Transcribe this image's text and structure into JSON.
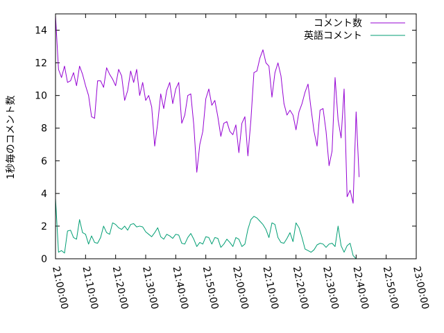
{
  "chart_data": {
    "type": "line",
    "title": "",
    "xlabel": "",
    "ylabel": "1秒毎のコメント数",
    "xlim": [
      "21:00:00",
      "22:58:00"
    ],
    "ylim": [
      0,
      15
    ],
    "grid": false,
    "legend_position": "top-right",
    "x_tick_labels": [
      "21:00:00",
      "21:10:00",
      "21:20:00",
      "21:30:00",
      "21:40:00",
      "21:50:00",
      "22:00:00",
      "22:10:00",
      "22:20:00",
      "22:30:00",
      "22:40:00",
      "22:50:00",
      "23:00:00"
    ],
    "y_tick_labels": [
      "0",
      "2",
      "4",
      "6",
      "8",
      "10",
      "12",
      "14"
    ],
    "series": [
      {
        "name": "コメント数",
        "color": "#9400d3",
        "points": [
          [
            "21:00:00",
            14.9
          ],
          [
            "21:01:00",
            11.6
          ],
          [
            "21:02:00",
            11.1
          ],
          [
            "21:03:00",
            11.8
          ],
          [
            "21:04:00",
            10.8
          ],
          [
            "21:05:00",
            10.9
          ],
          [
            "21:06:00",
            11.4
          ],
          [
            "21:07:00",
            10.6
          ],
          [
            "21:08:00",
            11.8
          ],
          [
            "21:09:00",
            11.3
          ],
          [
            "21:10:00",
            10.6
          ],
          [
            "21:11:00",
            10.0
          ],
          [
            "21:12:00",
            8.7
          ],
          [
            "21:13:00",
            8.6
          ],
          [
            "21:14:00",
            10.9
          ],
          [
            "21:15:00",
            10.9
          ],
          [
            "21:16:00",
            10.5
          ],
          [
            "21:17:00",
            11.7
          ],
          [
            "21:18:00",
            11.3
          ],
          [
            "21:19:00",
            11.0
          ],
          [
            "21:20:00",
            10.6
          ],
          [
            "21:21:00",
            11.6
          ],
          [
            "21:22:00",
            11.2
          ],
          [
            "21:23:00",
            9.7
          ],
          [
            "21:24:00",
            10.3
          ],
          [
            "21:25:00",
            11.5
          ],
          [
            "21:26:00",
            10.8
          ],
          [
            "21:27:00",
            11.6
          ],
          [
            "21:28:00",
            10.0
          ],
          [
            "21:29:00",
            10.8
          ],
          [
            "21:30:00",
            9.7
          ],
          [
            "21:31:00",
            10.0
          ],
          [
            "21:32:00",
            9.3
          ],
          [
            "21:33:00",
            6.9
          ],
          [
            "21:34:00",
            8.3
          ],
          [
            "21:35:00",
            10.1
          ],
          [
            "21:36:00",
            9.2
          ],
          [
            "21:37:00",
            10.3
          ],
          [
            "21:38:00",
            10.8
          ],
          [
            "21:39:00",
            9.5
          ],
          [
            "21:40:00",
            10.4
          ],
          [
            "21:41:00",
            10.8
          ],
          [
            "21:42:00",
            8.3
          ],
          [
            "21:43:00",
            8.8
          ],
          [
            "21:44:00",
            10.0
          ],
          [
            "21:45:00",
            10.1
          ],
          [
            "21:46:00",
            8.2
          ],
          [
            "21:47:00",
            5.3
          ],
          [
            "21:48:00",
            7.0
          ],
          [
            "21:49:00",
            7.8
          ],
          [
            "21:50:00",
            9.8
          ],
          [
            "21:51:00",
            10.4
          ],
          [
            "21:52:00",
            9.4
          ],
          [
            "21:53:00",
            9.7
          ],
          [
            "21:54:00",
            8.7
          ],
          [
            "21:55:00",
            7.5
          ],
          [
            "21:56:00",
            8.3
          ],
          [
            "21:57:00",
            8.4
          ],
          [
            "21:58:00",
            7.8
          ],
          [
            "21:59:00",
            7.6
          ],
          [
            "22:00:00",
            8.2
          ],
          [
            "22:01:00",
            6.5
          ],
          [
            "22:02:00",
            8.3
          ],
          [
            "22:03:00",
            8.7
          ],
          [
            "22:04:00",
            6.3
          ],
          [
            "22:05:00",
            8.5
          ],
          [
            "22:06:00",
            11.4
          ],
          [
            "22:07:00",
            11.5
          ],
          [
            "22:08:00",
            12.3
          ],
          [
            "22:09:00",
            12.8
          ],
          [
            "22:10:00",
            12.0
          ],
          [
            "22:11:00",
            11.8
          ],
          [
            "22:12:00",
            9.9
          ],
          [
            "22:13:00",
            11.4
          ],
          [
            "22:14:00",
            12.0
          ],
          [
            "22:15:00",
            11.2
          ],
          [
            "22:16:00",
            9.5
          ],
          [
            "22:17:00",
            8.8
          ],
          [
            "22:18:00",
            9.1
          ],
          [
            "22:19:00",
            8.8
          ],
          [
            "22:20:00",
            7.9
          ],
          [
            "22:21:00",
            9.0
          ],
          [
            "22:22:00",
            9.5
          ],
          [
            "22:23:00",
            10.2
          ],
          [
            "22:24:00",
            10.7
          ],
          [
            "22:25:00",
            9.2
          ],
          [
            "22:26:00",
            7.8
          ],
          [
            "22:27:00",
            6.9
          ],
          [
            "22:28:00",
            9.1
          ],
          [
            "22:29:00",
            9.2
          ],
          [
            "22:30:00",
            7.8
          ],
          [
            "22:31:00",
            5.7
          ],
          [
            "22:32:00",
            6.6
          ],
          [
            "22:33:00",
            11.1
          ],
          [
            "22:34:00",
            8.5
          ],
          [
            "22:35:00",
            7.4
          ],
          [
            "22:36:00",
            10.4
          ],
          [
            "22:37:00",
            3.8
          ],
          [
            "22:38:00",
            4.2
          ],
          [
            "22:39:00",
            3.4
          ],
          [
            "22:40:00",
            9.0
          ],
          [
            "22:41:00",
            5.0
          ]
        ]
      },
      {
        "name": "英語コメント",
        "color": "#009e73",
        "points": [
          [
            "21:00:00",
            3.7
          ],
          [
            "21:01:00",
            0.4
          ],
          [
            "21:02:00",
            0.5
          ],
          [
            "21:03:00",
            0.35
          ],
          [
            "21:04:00",
            1.7
          ],
          [
            "21:05:00",
            1.75
          ],
          [
            "21:06:00",
            1.3
          ],
          [
            "21:07:00",
            1.2
          ],
          [
            "21:08:00",
            2.4
          ],
          [
            "21:09:00",
            1.6
          ],
          [
            "21:10:00",
            1.5
          ],
          [
            "21:11:00",
            0.9
          ],
          [
            "21:12:00",
            1.4
          ],
          [
            "21:13:00",
            1.0
          ],
          [
            "21:14:00",
            0.95
          ],
          [
            "21:15:00",
            1.3
          ],
          [
            "21:16:00",
            2.0
          ],
          [
            "21:17:00",
            1.6
          ],
          [
            "21:18:00",
            1.5
          ],
          [
            "21:19:00",
            2.2
          ],
          [
            "21:20:00",
            2.1
          ],
          [
            "21:21:00",
            1.9
          ],
          [
            "21:22:00",
            1.8
          ],
          [
            "21:23:00",
            2.0
          ],
          [
            "21:24:00",
            1.75
          ],
          [
            "21:25:00",
            2.1
          ],
          [
            "21:26:00",
            2.15
          ],
          [
            "21:27:00",
            1.95
          ],
          [
            "21:28:00",
            2.0
          ],
          [
            "21:29:00",
            1.95
          ],
          [
            "21:30:00",
            1.65
          ],
          [
            "21:31:00",
            1.5
          ],
          [
            "21:32:00",
            1.35
          ],
          [
            "21:33:00",
            1.6
          ],
          [
            "21:34:00",
            1.9
          ],
          [
            "21:35:00",
            1.35
          ],
          [
            "21:36:00",
            1.2
          ],
          [
            "21:37:00",
            1.5
          ],
          [
            "21:38:00",
            1.4
          ],
          [
            "21:39:00",
            1.25
          ],
          [
            "21:40:00",
            1.5
          ],
          [
            "21:41:00",
            1.45
          ],
          [
            "21:42:00",
            0.95
          ],
          [
            "21:43:00",
            0.9
          ],
          [
            "21:44:00",
            1.3
          ],
          [
            "21:45:00",
            1.55
          ],
          [
            "21:46:00",
            1.2
          ],
          [
            "21:47:00",
            0.75
          ],
          [
            "21:48:00",
            1.0
          ],
          [
            "21:49:00",
            0.9
          ],
          [
            "21:50:00",
            1.35
          ],
          [
            "21:51:00",
            1.3
          ],
          [
            "21:52:00",
            0.9
          ],
          [
            "21:53:00",
            1.3
          ],
          [
            "21:54:00",
            1.25
          ],
          [
            "21:55:00",
            0.7
          ],
          [
            "21:56:00",
            0.9
          ],
          [
            "21:57:00",
            1.2
          ],
          [
            "21:58:00",
            1.0
          ],
          [
            "21:59:00",
            0.75
          ],
          [
            "22:00:00",
            1.3
          ],
          [
            "22:01:00",
            1.2
          ],
          [
            "22:02:00",
            0.75
          ],
          [
            "22:03:00",
            0.9
          ],
          [
            "22:04:00",
            1.8
          ],
          [
            "22:05:00",
            2.4
          ],
          [
            "22:06:00",
            2.6
          ],
          [
            "22:07:00",
            2.5
          ],
          [
            "22:08:00",
            2.3
          ],
          [
            "22:09:00",
            2.1
          ],
          [
            "22:10:00",
            1.8
          ],
          [
            "22:11:00",
            1.3
          ],
          [
            "22:12:00",
            2.2
          ],
          [
            "22:13:00",
            2.1
          ],
          [
            "22:14:00",
            1.3
          ],
          [
            "22:15:00",
            1.0
          ],
          [
            "22:16:00",
            0.95
          ],
          [
            "22:17:00",
            1.25
          ],
          [
            "22:18:00",
            1.6
          ],
          [
            "22:19:00",
            1.05
          ],
          [
            "22:20:00",
            2.2
          ],
          [
            "22:21:00",
            1.9
          ],
          [
            "22:22:00",
            1.3
          ],
          [
            "22:23:00",
            0.6
          ],
          [
            "22:24:00",
            0.5
          ],
          [
            "22:25:00",
            0.4
          ],
          [
            "22:26:00",
            0.55
          ],
          [
            "22:27:00",
            0.85
          ],
          [
            "22:28:00",
            0.95
          ],
          [
            "22:29:00",
            0.9
          ],
          [
            "22:30:00",
            0.7
          ],
          [
            "22:31:00",
            0.9
          ],
          [
            "22:32:00",
            0.95
          ],
          [
            "22:33:00",
            0.75
          ],
          [
            "22:34:00",
            2.0
          ],
          [
            "22:35:00",
            0.8
          ],
          [
            "22:36:00",
            0.4
          ],
          [
            "22:37:00",
            0.8
          ],
          [
            "22:38:00",
            0.95
          ],
          [
            "22:39:00",
            0.2
          ],
          [
            "22:40:00",
            0.0
          ]
        ]
      }
    ]
  }
}
